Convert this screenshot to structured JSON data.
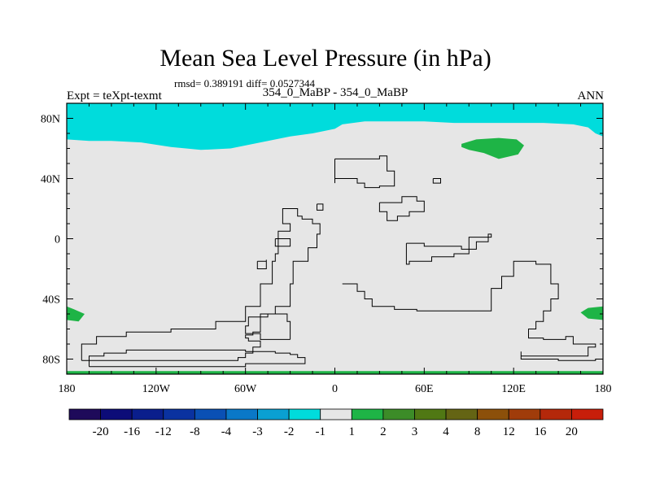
{
  "title": "Mean Sea Level Pressure (in hPa)",
  "stats": "rmsd= 0.389191 diff= 0.0527344",
  "left_label": "Expt = teXpt-texmt",
  "center_label": "354_0_MaBP - 354_0_MaBP",
  "right_label": "ANN",
  "map": {
    "projection": "cylindrical-equidistant",
    "lon_range": [
      -180,
      180
    ],
    "lat_range": [
      -90,
      90
    ],
    "x_ticks": [
      {
        "value": -180,
        "label": "180"
      },
      {
        "value": -120,
        "label": "120W"
      },
      {
        "value": -60,
        "label": "60W"
      },
      {
        "value": 0,
        "label": "0"
      },
      {
        "value": 60,
        "label": "60E"
      },
      {
        "value": 120,
        "label": "120E"
      },
      {
        "value": 180,
        "label": "180"
      }
    ],
    "y_ticks": [
      {
        "value": 80,
        "label": "80N"
      },
      {
        "value": 40,
        "label": "40N"
      },
      {
        "value": 0,
        "label": "0"
      },
      {
        "value": -40,
        "label": "40S"
      },
      {
        "value": -80,
        "label": "80S"
      }
    ],
    "background_color": "#e6e6e6",
    "fill_regions": [
      {
        "name": "arctic-band",
        "level": "-2 to -1",
        "color": "#00dcdc",
        "points": [
          [
            -180,
            90
          ],
          [
            180,
            90
          ],
          [
            180,
            68
          ],
          [
            175,
            70
          ],
          [
            170,
            74
          ],
          [
            160,
            76
          ],
          [
            140,
            77
          ],
          [
            120,
            77
          ],
          [
            80,
            77
          ],
          [
            60,
            78
          ],
          [
            20,
            78
          ],
          [
            5,
            76
          ],
          [
            0,
            73
          ],
          [
            -15,
            70
          ],
          [
            -30,
            68
          ],
          [
            -50,
            64
          ],
          [
            -70,
            60
          ],
          [
            -90,
            59
          ],
          [
            -110,
            61
          ],
          [
            -130,
            64
          ],
          [
            -150,
            65
          ],
          [
            -165,
            65
          ],
          [
            -180,
            66
          ]
        ]
      },
      {
        "name": "siberia-anomaly",
        "level": "1 to 2",
        "color": "#1eb446",
        "points": [
          [
            85,
            63
          ],
          [
            95,
            66
          ],
          [
            110,
            67
          ],
          [
            122,
            66
          ],
          [
            127,
            62
          ],
          [
            123,
            56
          ],
          [
            110,
            53
          ],
          [
            100,
            57
          ],
          [
            90,
            59
          ],
          [
            85,
            61
          ]
        ]
      },
      {
        "name": "south-pacific-west-anomaly",
        "level": "1 to 2",
        "color": "#1eb446",
        "points": [
          [
            -180,
            -45
          ],
          [
            -175,
            -47
          ],
          [
            -168,
            -50
          ],
          [
            -172,
            -55
          ],
          [
            -180,
            -54
          ]
        ]
      },
      {
        "name": "south-pacific-east-anomaly",
        "level": "1 to 2",
        "color": "#1eb446",
        "points": [
          [
            180,
            -45
          ],
          [
            170,
            -46
          ],
          [
            165,
            -49
          ],
          [
            170,
            -53
          ],
          [
            180,
            -54
          ]
        ]
      },
      {
        "name": "antarctic-edge",
        "level": "1 to 2",
        "color": "#1eb446",
        "points": [
          [
            -180,
            -88
          ],
          [
            180,
            -88
          ],
          [
            180,
            -90
          ],
          [
            -180,
            -90
          ]
        ]
      }
    ],
    "coastlines": [
      [
        [
          -165,
          -85
        ],
        [
          -60,
          -85
        ],
        [
          -60,
          -83
        ],
        [
          -20,
          -83
        ],
        [
          -20,
          -79
        ],
        [
          -25,
          -77
        ],
        [
          -30,
          -76
        ],
        [
          -40,
          -75
        ],
        [
          -60,
          -74
        ],
        [
          -85,
          -74
        ],
        [
          -110,
          -74
        ],
        [
          -140,
          -76
        ],
        [
          -155,
          -78
        ],
        [
          -165,
          -80
        ],
        [
          -165,
          -85
        ]
      ],
      [
        [
          -170,
          -81
        ],
        [
          -90,
          -81
        ],
        [
          -65,
          -79
        ],
        [
          -60,
          -76
        ],
        [
          -55,
          -72
        ],
        [
          -50,
          -68
        ],
        [
          -58,
          -66
        ],
        [
          -60,
          -64
        ],
        [
          -55,
          -62
        ],
        [
          -50,
          -50
        ],
        [
          -40,
          -45
        ],
        [
          -30,
          -30
        ],
        [
          -28,
          -15
        ],
        [
          -18,
          -6
        ],
        [
          -12,
          3
        ],
        [
          -10,
          10
        ],
        [
          -15,
          13
        ],
        [
          -22,
          15
        ],
        [
          -25,
          18
        ],
        [
          -25,
          20
        ],
        [
          -30,
          20
        ],
        [
          -35,
          18
        ],
        [
          -35,
          10
        ],
        [
          -30,
          5
        ],
        [
          -38,
          2
        ],
        [
          -38,
          -10
        ],
        [
          -40,
          -15
        ],
        [
          -42,
          -30
        ],
        [
          -50,
          -45
        ],
        [
          -60,
          -55
        ],
        [
          -80,
          -60
        ],
        [
          -110,
          -62
        ],
        [
          -140,
          -65
        ],
        [
          -160,
          -70
        ],
        [
          -170,
          -76
        ],
        [
          -170,
          -81
        ]
      ],
      [
        [
          -30,
          -67
        ],
        [
          -50,
          -63
        ],
        [
          -60,
          -58
        ],
        [
          -58,
          -52
        ],
        [
          -45,
          -50
        ],
        [
          -32,
          -55
        ],
        [
          -30,
          -67
        ]
      ],
      [
        [
          5,
          -30
        ],
        [
          15,
          -35
        ],
        [
          20,
          -40
        ],
        [
          25,
          -45
        ],
        [
          40,
          -47
        ],
        [
          55,
          -48
        ],
        [
          90,
          -48
        ],
        [
          105,
          -45
        ],
        [
          105,
          -33
        ],
        [
          112,
          -25
        ],
        [
          120,
          -15
        ],
        [
          135,
          -17
        ],
        [
          145,
          -30
        ],
        [
          150,
          -40
        ],
        [
          145,
          -48
        ],
        [
          140,
          -55
        ],
        [
          135,
          -60
        ],
        [
          130,
          -66
        ],
        [
          140,
          -67
        ],
        [
          155,
          -65
        ],
        [
          160,
          -70
        ],
        [
          175,
          -72
        ],
        [
          170,
          -78
        ],
        [
          150,
          -78
        ],
        [
          125,
          -75
        ],
        [
          125,
          -80
        ],
        [
          150,
          -81
        ],
        [
          175,
          -80
        ],
        [
          180,
          -78
        ]
      ],
      [
        [
          48,
          -3
        ],
        [
          60,
          -5
        ],
        [
          85,
          -7
        ],
        [
          95,
          -2
        ],
        [
          103,
          3
        ],
        [
          105,
          1
        ],
        [
          90,
          -10
        ],
        [
          80,
          -12
        ],
        [
          65,
          -15
        ],
        [
          50,
          -17
        ],
        [
          48,
          -10
        ],
        [
          48,
          -3
        ]
      ],
      [
        [
          0,
          53
        ],
        [
          30,
          55
        ],
        [
          35,
          45
        ],
        [
          40,
          35
        ],
        [
          30,
          34
        ],
        [
          20,
          37
        ],
        [
          15,
          40
        ],
        [
          0,
          37
        ],
        [
          0,
          53
        ]
      ],
      [
        [
          30,
          24
        ],
        [
          45,
          28
        ],
        [
          55,
          25
        ],
        [
          60,
          18
        ],
        [
          50,
          15
        ],
        [
          42,
          12
        ],
        [
          35,
          18
        ],
        [
          30,
          24
        ]
      ],
      [
        [
          -40,
          0
        ],
        [
          -30,
          -2
        ],
        [
          -30,
          -5
        ],
        [
          -40,
          -5
        ],
        [
          -40,
          0
        ]
      ],
      [
        [
          -52,
          -15
        ],
        [
          -46,
          -14
        ],
        [
          -46,
          -20
        ],
        [
          -52,
          -20
        ],
        [
          -52,
          -15
        ]
      ],
      [
        [
          66,
          40
        ],
        [
          71,
          40
        ],
        [
          71,
          37
        ],
        [
          66,
          37
        ],
        [
          66,
          40
        ]
      ],
      [
        [
          -12,
          23
        ],
        [
          -8,
          23
        ],
        [
          -8,
          19
        ],
        [
          -12,
          19
        ],
        [
          -12,
          23
        ]
      ]
    ]
  },
  "colorbar": {
    "colors": [
      "#1e0a5a",
      "#0c0c78",
      "#0a1e8c",
      "#0a32a0",
      "#0a50b4",
      "#0a78c8",
      "#0aa0d2",
      "#00dcdc",
      "#e6e6e6",
      "#1eb446",
      "#3c8c28",
      "#507814",
      "#646414",
      "#8c500a",
      "#a03c0a",
      "#b4280a",
      "#c81e0a"
    ],
    "labels": [
      "-20",
      "-16",
      "-12",
      "-8",
      "-4",
      "-3",
      "-2",
      "-1",
      "1",
      "2",
      "3",
      "4",
      "8",
      "12",
      "16",
      "20"
    ]
  }
}
